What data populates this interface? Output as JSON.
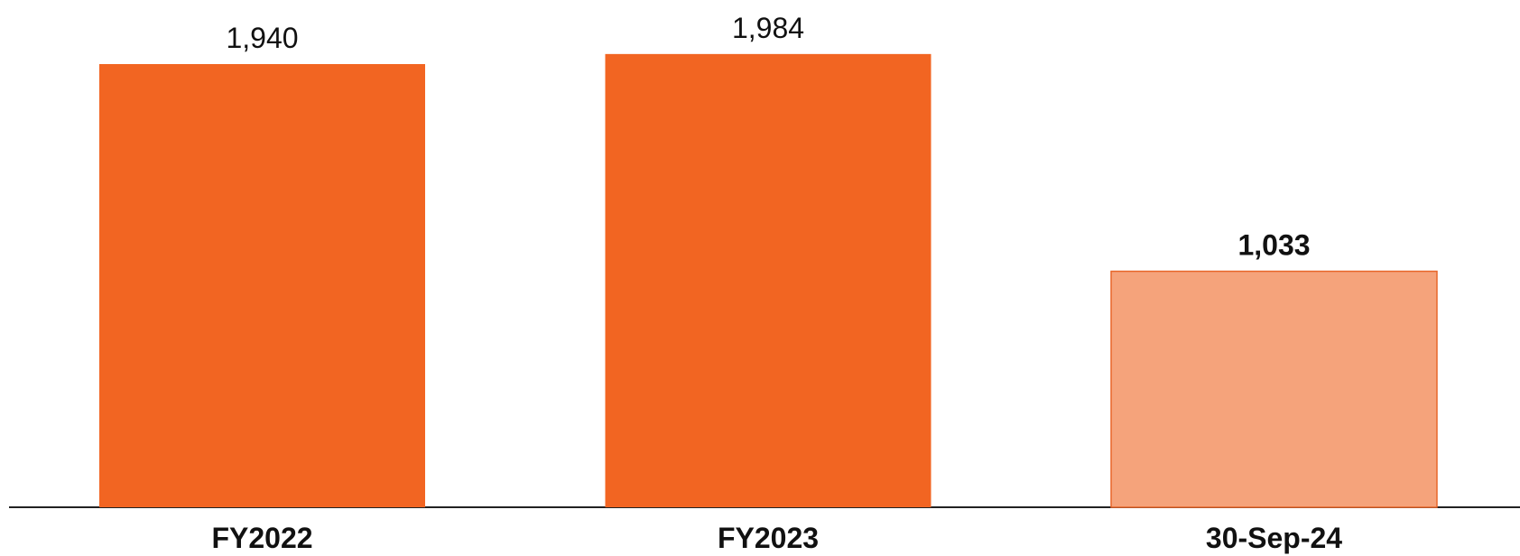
{
  "chart_data": {
    "type": "bar",
    "categories": [
      "FY2022",
      "FY2023",
      "30-Sep-24"
    ],
    "values": [
      1940,
      1984,
      1033
    ],
    "value_labels": [
      "1,940",
      "1,984",
      "1,033"
    ],
    "colors": [
      "#f26522",
      "#f26522",
      "#f5a37b"
    ]
  }
}
